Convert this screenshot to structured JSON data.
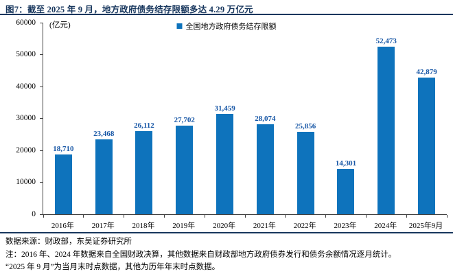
{
  "header": {
    "title": "图7：截至 2025 年 9 月，地方政府债务结存限额多达 4.29 万亿元"
  },
  "chart_data": {
    "type": "bar",
    "series_name": "全国地方政府债务结存限额",
    "unit_label": "(亿元)",
    "categories": [
      "2016年",
      "2017年",
      "2018年",
      "2019年",
      "2020年",
      "2021年",
      "2022年",
      "2023年",
      "2024年",
      "2025年9月"
    ],
    "values": [
      18710,
      23468,
      26112,
      27702,
      31459,
      28074,
      25856,
      14301,
      52473,
      42879
    ],
    "value_labels": [
      "18,710",
      "23,468",
      "26,112",
      "27,702",
      "31,459",
      "28,074",
      "25,856",
      "14,301",
      "52,473",
      "42,879"
    ],
    "ylabel": "亿元",
    "ylim": [
      0,
      60000
    ],
    "yticks": [
      0,
      10000,
      20000,
      30000,
      40000,
      50000,
      60000
    ],
    "grid": false,
    "legend_position": "top-center"
  },
  "colors": {
    "accent": "#17365d",
    "bar": "#0e73bc",
    "value_label": "#1857a6"
  },
  "footer": {
    "source": "数据来源：财政部，东吴证券研究所",
    "note1": "注：2016 年、2024 年数据来自全国财政决算，其他数据来自财政部地方政府债券发行和债务余额情况逐月统计。",
    "note2": "“2025 年 9 月”为当月末时点数据，其他为历年年末时点数据。"
  }
}
